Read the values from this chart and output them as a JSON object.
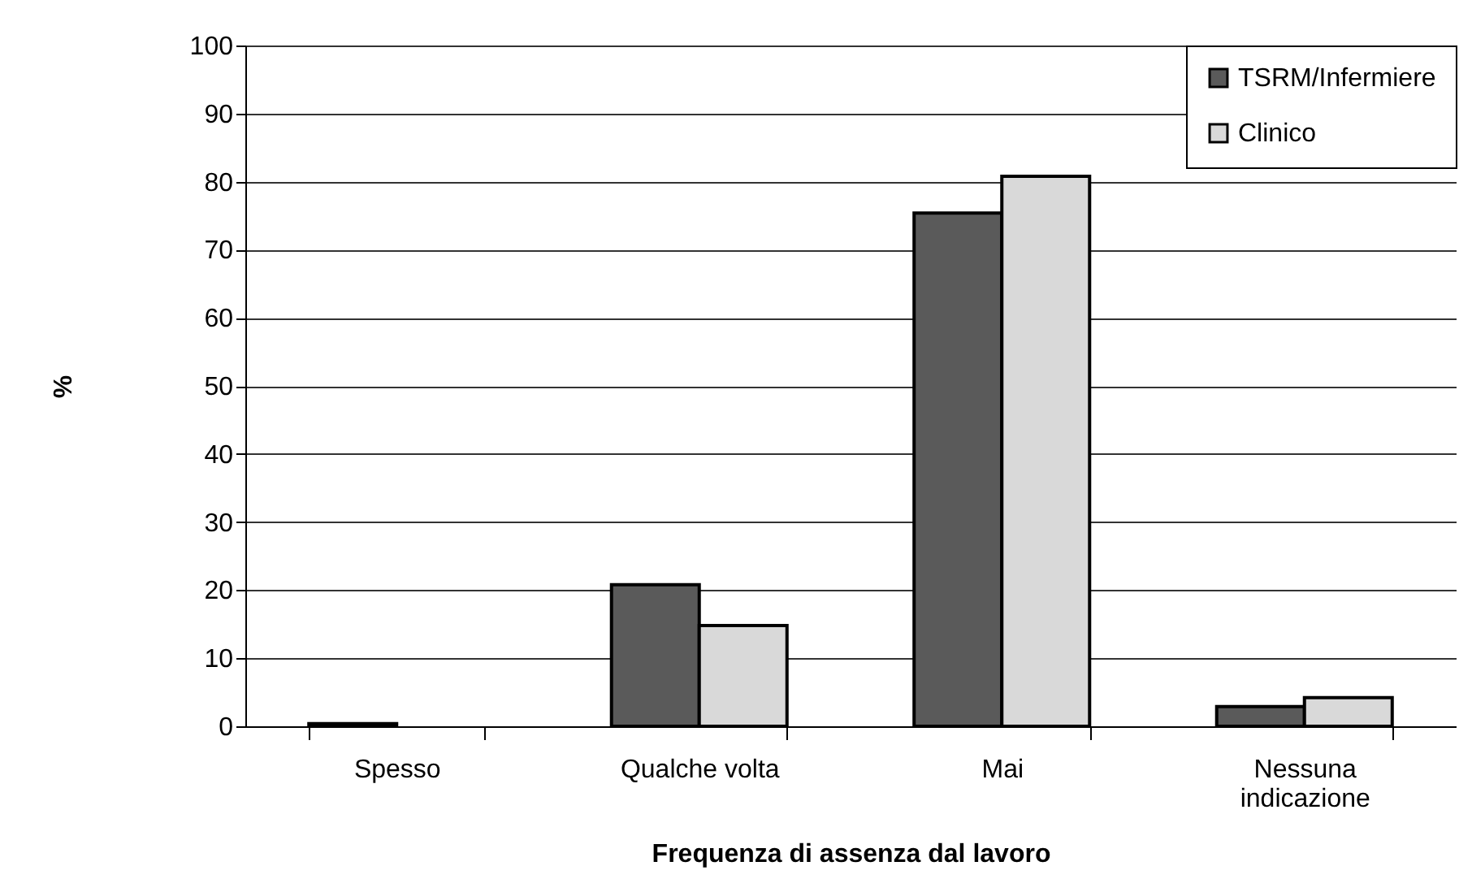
{
  "chart_data": {
    "type": "bar",
    "xlabel": "Frequenza di assenza dal lavoro",
    "ylabel": "%",
    "categories": [
      "Spesso",
      "Qualche volta",
      "Mai",
      "Nessuna indicazione"
    ],
    "series": [
      {
        "name": "TSRM/Infermiere",
        "color": "#5a5a5a",
        "values": [
          0.4,
          20.8,
          75.4,
          2.9
        ]
      },
      {
        "name": "Clinico",
        "color": "#d9d9d9",
        "values": [
          null,
          14.8,
          80.8,
          4.2
        ]
      }
    ],
    "ylim": [
      0,
      100
    ],
    "yticks": [
      0,
      10,
      20,
      30,
      40,
      50,
      60,
      70,
      80,
      90,
      100
    ],
    "grid": "y",
    "legend": "top right"
  }
}
